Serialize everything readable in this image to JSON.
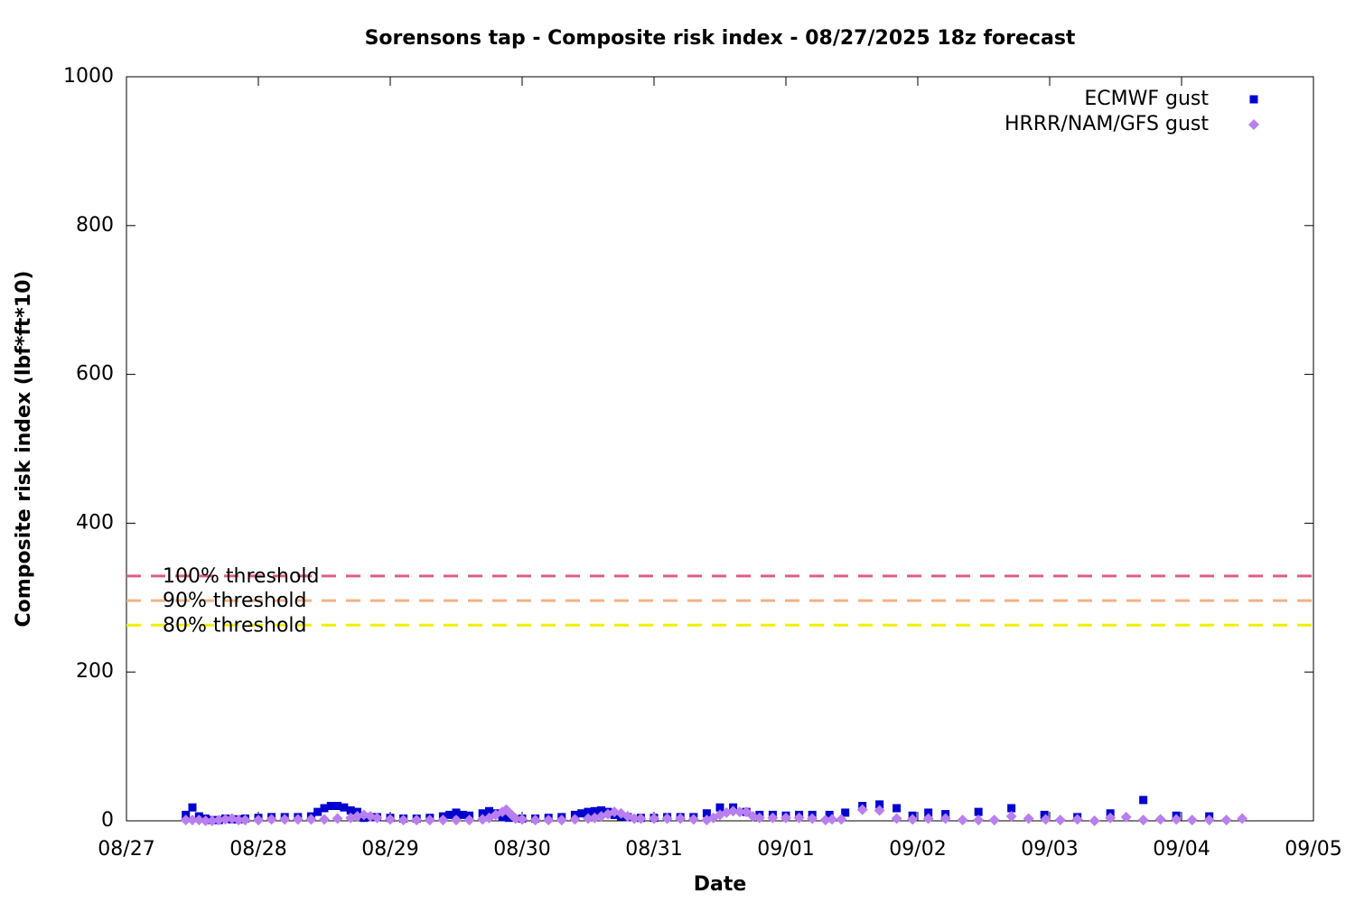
{
  "chart_data": {
    "type": "scatter",
    "title": "Sorensons tap - Composite risk index - 08/27/2025 18z forecast",
    "x_label": "Date",
    "y_label": "Composite risk index (lbf*ft*10)",
    "xlim": [
      0,
      9
    ],
    "xticks": [
      {
        "value": 0,
        "label": "08/27"
      },
      {
        "value": 1,
        "label": "08/28"
      },
      {
        "value": 2,
        "label": "08/29"
      },
      {
        "value": 3,
        "label": "08/30"
      },
      {
        "value": 4,
        "label": "08/31"
      },
      {
        "value": 5,
        "label": "09/01"
      },
      {
        "value": 6,
        "label": "09/02"
      },
      {
        "value": 7,
        "label": "09/03"
      },
      {
        "value": 8,
        "label": "09/04"
      },
      {
        "value": 9,
        "label": "09/05"
      }
    ],
    "ylim": [
      0,
      1000
    ],
    "yticks": [
      0,
      200,
      400,
      600,
      800,
      1000
    ],
    "grid": false,
    "legend": "top-right",
    "thresholds": [
      {
        "name": "100% threshold",
        "value": 329,
        "color": "#dd5f7f"
      },
      {
        "name": "90% threshold",
        "value": 296,
        "color": "#f6b183"
      },
      {
        "name": "80% threshold",
        "value": 263,
        "color": "#f0f000"
      }
    ],
    "series": [
      {
        "name": "ECMWF gust",
        "color": "#0000d0",
        "marker": "square",
        "x": [
          0.45,
          0.5,
          0.55,
          0.6,
          0.65,
          0.7,
          0.75,
          0.8,
          0.85,
          0.9,
          1.0,
          1.1,
          1.2,
          1.3,
          1.4,
          1.45,
          1.5,
          1.55,
          1.6,
          1.65,
          1.7,
          1.75,
          1.8,
          1.85,
          1.9,
          2.0,
          2.1,
          2.2,
          2.3,
          2.4,
          2.45,
          2.5,
          2.55,
          2.6,
          2.7,
          2.75,
          2.8,
          2.85,
          2.9,
          3.0,
          3.1,
          3.2,
          3.3,
          3.4,
          3.45,
          3.5,
          3.55,
          3.6,
          3.65,
          3.7,
          3.75,
          3.8,
          3.9,
          4.0,
          4.1,
          4.2,
          4.3,
          4.4,
          4.5,
          4.6,
          4.7,
          4.8,
          4.9,
          5.0,
          5.1,
          5.2,
          5.33,
          5.45,
          5.58,
          5.71,
          5.84,
          5.96,
          6.08,
          6.21,
          6.46,
          6.71,
          6.96,
          7.21,
          7.46,
          7.71,
          7.96,
          8.21
        ],
        "values": [
          8,
          18,
          6,
          3,
          1,
          1,
          3,
          2,
          2,
          3,
          4,
          5,
          5,
          5,
          6,
          12,
          17,
          20,
          20,
          18,
          14,
          12,
          4,
          5,
          5,
          4,
          3,
          3,
          4,
          6,
          8,
          11,
          8,
          7,
          10,
          13,
          10,
          5,
          4,
          3,
          3,
          4,
          5,
          8,
          10,
          12,
          13,
          14,
          12,
          8,
          6,
          5,
          4,
          4,
          5,
          5,
          5,
          10,
          18,
          18,
          12,
          8,
          8,
          7,
          8,
          8,
          8,
          11,
          20,
          22,
          17,
          7,
          11,
          9,
          12,
          17,
          8,
          5,
          10,
          28,
          7,
          6
        ]
      },
      {
        "name": "HRRR/NAM/GFS gust",
        "color": "#b97ff0",
        "marker": "diamond",
        "x": [
          0.45,
          0.5,
          0.55,
          0.6,
          0.65,
          0.7,
          0.75,
          0.8,
          0.85,
          0.9,
          1.0,
          1.1,
          1.2,
          1.3,
          1.4,
          1.5,
          1.6,
          1.7,
          1.75,
          1.8,
          1.85,
          1.9,
          2.0,
          2.1,
          2.2,
          2.3,
          2.4,
          2.5,
          2.6,
          2.7,
          2.75,
          2.8,
          2.85,
          2.88,
          2.92,
          2.95,
          3.0,
          3.1,
          3.2,
          3.3,
          3.4,
          3.5,
          3.55,
          3.6,
          3.65,
          3.7,
          3.75,
          3.8,
          3.85,
          3.9,
          4.0,
          4.1,
          4.2,
          4.3,
          4.4,
          4.45,
          4.5,
          4.55,
          4.6,
          4.65,
          4.7,
          4.75,
          4.8,
          4.9,
          5.0,
          5.1,
          5.2,
          5.3,
          5.35,
          5.42,
          5.58,
          5.71,
          5.84,
          5.96,
          6.08,
          6.21,
          6.34,
          6.46,
          6.58,
          6.71,
          6.84,
          6.97,
          7.08,
          7.21,
          7.34,
          7.46,
          7.58,
          7.71,
          7.84,
          7.96,
          8.08,
          8.21,
          8.34,
          8.46
        ],
        "values": [
          1,
          1,
          1,
          0,
          0,
          1,
          2,
          3,
          1,
          1,
          1,
          2,
          2,
          2,
          2,
          2,
          3,
          4,
          6,
          8,
          6,
          4,
          2,
          1,
          1,
          1,
          1,
          1,
          1,
          2,
          4,
          8,
          12,
          15,
          8,
          3,
          2,
          1,
          1,
          1,
          2,
          3,
          4,
          6,
          9,
          12,
          10,
          6,
          3,
          3,
          3,
          3,
          3,
          2,
          1,
          4,
          8,
          11,
          13,
          12,
          12,
          6,
          4,
          4,
          4,
          4,
          3,
          1,
          2,
          2,
          15,
          14,
          3,
          2,
          3,
          3,
          1,
          1,
          1,
          6,
          3,
          2,
          1,
          2,
          0,
          4,
          5,
          1,
          2,
          2,
          1,
          1,
          1,
          3
        ]
      }
    ]
  }
}
